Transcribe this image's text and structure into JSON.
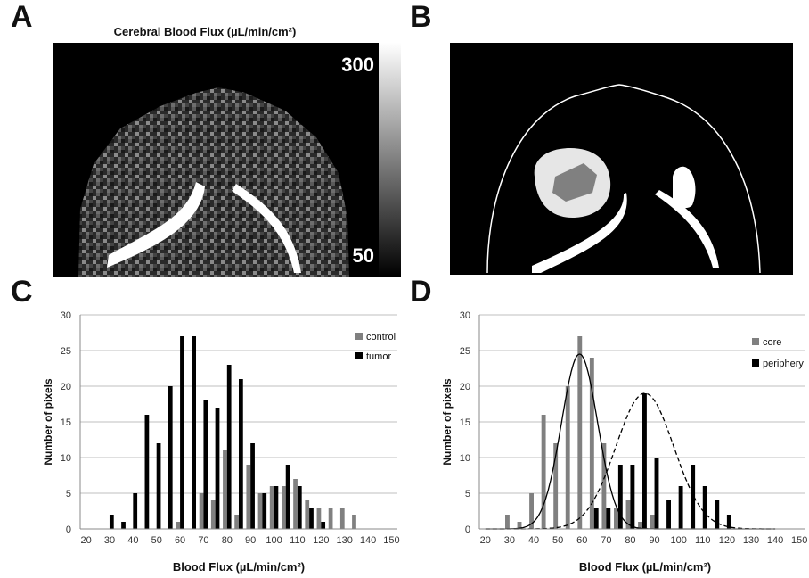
{
  "panels": {
    "a": {
      "letter": "A",
      "title": "Cerebral Blood Flux (µL/min/cm²)",
      "scale_max": "300",
      "scale_min": "50"
    },
    "b": {
      "letter": "B"
    },
    "c": {
      "letter": "C"
    },
    "d": {
      "letter": "D"
    }
  },
  "colors": {
    "control": "#808080",
    "tumor": "#000000",
    "core": "#808080",
    "periphery": "#000000",
    "roi_fill": "#e6e6e6",
    "background": "#000000"
  },
  "chart_data": [
    {
      "panel": "C",
      "type": "bar",
      "xlabel": "Blood Flux (µL/min/cm²)",
      "ylabel": "Number of pixels",
      "ylim": [
        0,
        30
      ],
      "yticks": [
        0,
        5,
        10,
        15,
        20,
        25,
        30
      ],
      "xlim": [
        17.5,
        152.5
      ],
      "xticks": [
        20,
        30,
        40,
        50,
        60,
        70,
        80,
        90,
        100,
        110,
        120,
        130,
        140,
        150
      ],
      "grid": true,
      "legend": "top-right",
      "bin_centers": [
        20,
        25,
        30,
        35,
        40,
        45,
        50,
        55,
        60,
        65,
        70,
        75,
        80,
        85,
        90,
        95,
        100,
        105,
        110,
        115,
        120,
        125,
        130,
        135,
        140,
        145,
        150
      ],
      "series": [
        {
          "name": "control",
          "values": [
            0,
            0,
            0,
            0,
            0,
            0,
            0,
            0,
            1,
            0,
            5,
            4,
            11,
            2,
            9,
            5,
            6,
            6,
            7,
            4,
            3,
            3,
            3,
            2,
            0,
            0,
            0
          ]
        },
        {
          "name": "tumor",
          "values": [
            0,
            0,
            2,
            1,
            5,
            16,
            12,
            20,
            27,
            27,
            18,
            17,
            23,
            21,
            12,
            5,
            6,
            9,
            6,
            3,
            1,
            0,
            0,
            0,
            0,
            0,
            0
          ]
        }
      ]
    },
    {
      "panel": "D",
      "type": "bar",
      "xlabel": "Blood Flux (µL/min/cm²)",
      "ylabel": "Number of pixels",
      "ylim": [
        0,
        30
      ],
      "yticks": [
        0,
        5,
        10,
        15,
        20,
        25,
        30
      ],
      "xlim": [
        17.5,
        152.5
      ],
      "xticks": [
        20,
        30,
        40,
        50,
        60,
        70,
        80,
        90,
        100,
        110,
        120,
        130,
        140,
        150
      ],
      "grid": true,
      "legend": "top-right",
      "bin_centers": [
        20,
        25,
        30,
        35,
        40,
        45,
        50,
        55,
        60,
        65,
        70,
        75,
        80,
        85,
        90,
        95,
        100,
        105,
        110,
        115,
        120,
        125,
        130,
        135,
        140,
        145,
        150
      ],
      "series": [
        {
          "name": "core",
          "values": [
            0,
            0,
            2,
            1,
            5,
            16,
            12,
            20,
            27,
            24,
            12,
            3,
            4,
            1,
            2,
            0,
            0,
            0,
            0,
            0,
            0,
            0,
            0,
            0,
            0,
            0,
            0
          ]
        },
        {
          "name": "periphery",
          "values": [
            0,
            0,
            0,
            0,
            0,
            0,
            0,
            0,
            0,
            3,
            3,
            9,
            9,
            19,
            10,
            4,
            6,
            9,
            6,
            4,
            2,
            0,
            0,
            0,
            0,
            0,
            0
          ]
        }
      ],
      "fits": [
        {
          "series": "core",
          "style": "solid",
          "mean": 59,
          "sd": 7.5,
          "peak": 24.5
        },
        {
          "series": "periphery",
          "style": "dashed",
          "mean": 86,
          "sd": 12,
          "peak": 19
        }
      ]
    }
  ]
}
